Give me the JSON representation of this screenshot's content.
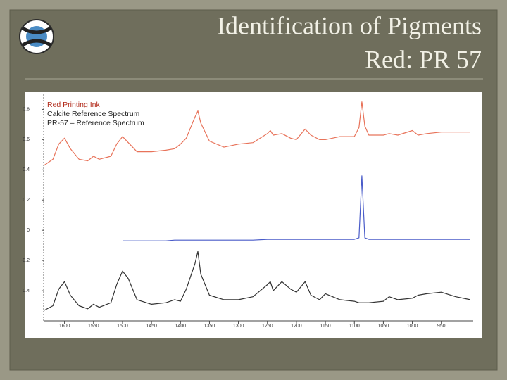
{
  "slide": {
    "title_lines": [
      "Identification of Pigments",
      "Red: PR 57"
    ]
  },
  "chart_data": {
    "type": "line",
    "x": [
      1635,
      1620,
      1610,
      1600,
      1590,
      1575,
      1560,
      1550,
      1540,
      1520,
      1510,
      1500,
      1490,
      1475,
      1450,
      1425,
      1410,
      1400,
      1390,
      1375,
      1370,
      1365,
      1350,
      1325,
      1300,
      1275,
      1250,
      1245,
      1240,
      1225,
      1210,
      1200,
      1185,
      1175,
      1160,
      1150,
      1125,
      1100,
      1092,
      1087,
      1082,
      1075,
      1050,
      1040,
      1025,
      1000,
      990,
      975,
      950,
      925,
      900
    ],
    "series": [
      {
        "name": "Red Printing Ink",
        "color": "#e8735a",
        "legend_color": "#b22a1a",
        "values": [
          0.43,
          0.47,
          0.57,
          0.61,
          0.54,
          0.47,
          0.46,
          0.49,
          0.47,
          0.49,
          0.57,
          0.62,
          0.58,
          0.52,
          0.52,
          0.53,
          0.54,
          0.57,
          0.61,
          0.75,
          0.79,
          0.71,
          0.59,
          0.55,
          0.57,
          0.58,
          0.64,
          0.66,
          0.63,
          0.64,
          0.61,
          0.6,
          0.67,
          0.63,
          0.6,
          0.6,
          0.62,
          0.62,
          0.68,
          0.85,
          0.69,
          0.63,
          0.63,
          0.64,
          0.63,
          0.66,
          0.63,
          0.64,
          0.65,
          0.65,
          0.65
        ]
      },
      {
        "name": "Calcite Reference Spectrum",
        "color": "#4a5cc9",
        "legend_color": "#222222",
        "values": [
          null,
          null,
          null,
          null,
          null,
          null,
          null,
          null,
          null,
          null,
          null,
          -0.07,
          -0.07,
          -0.07,
          -0.07,
          -0.07,
          -0.065,
          -0.065,
          -0.065,
          -0.065,
          -0.065,
          -0.065,
          -0.065,
          -0.065,
          -0.065,
          -0.065,
          -0.06,
          -0.06,
          -0.06,
          -0.06,
          -0.06,
          -0.06,
          -0.06,
          -0.06,
          -0.06,
          -0.06,
          -0.06,
          -0.06,
          -0.05,
          0.36,
          -0.05,
          -0.06,
          -0.06,
          -0.06,
          -0.06,
          -0.06,
          -0.06,
          -0.06,
          -0.06,
          -0.06,
          -0.06
        ]
      },
      {
        "name": "PR-57 – Reference Spectrum",
        "color": "#333333",
        "legend_color": "#222222",
        "values": [
          -0.53,
          -0.5,
          -0.39,
          -0.34,
          -0.43,
          -0.5,
          -0.52,
          -0.49,
          -0.51,
          -0.48,
          -0.36,
          -0.27,
          -0.32,
          -0.46,
          -0.49,
          -0.48,
          -0.46,
          -0.47,
          -0.39,
          -0.22,
          -0.14,
          -0.29,
          -0.43,
          -0.46,
          -0.46,
          -0.44,
          -0.36,
          -0.34,
          -0.4,
          -0.34,
          -0.39,
          -0.41,
          -0.34,
          -0.43,
          -0.46,
          -0.42,
          -0.46,
          -0.47,
          -0.48,
          -0.48,
          -0.48,
          -0.48,
          -0.47,
          -0.44,
          -0.46,
          -0.45,
          -0.43,
          -0.42,
          -0.41,
          -0.44,
          -0.46
        ]
      }
    ],
    "xlim": [
      1636,
      895
    ],
    "ylim": [
      -0.6,
      0.9
    ],
    "xticks": [
      1600,
      1550,
      1500,
      1450,
      1400,
      1350,
      1300,
      1250,
      1200,
      1150,
      1100,
      1050,
      1000,
      950
    ],
    "yticks": [
      0.8,
      0.6,
      0.4,
      0.2,
      0,
      -0.2,
      {
        "value": -0.4,
        "label": "0.4"
      }
    ]
  }
}
